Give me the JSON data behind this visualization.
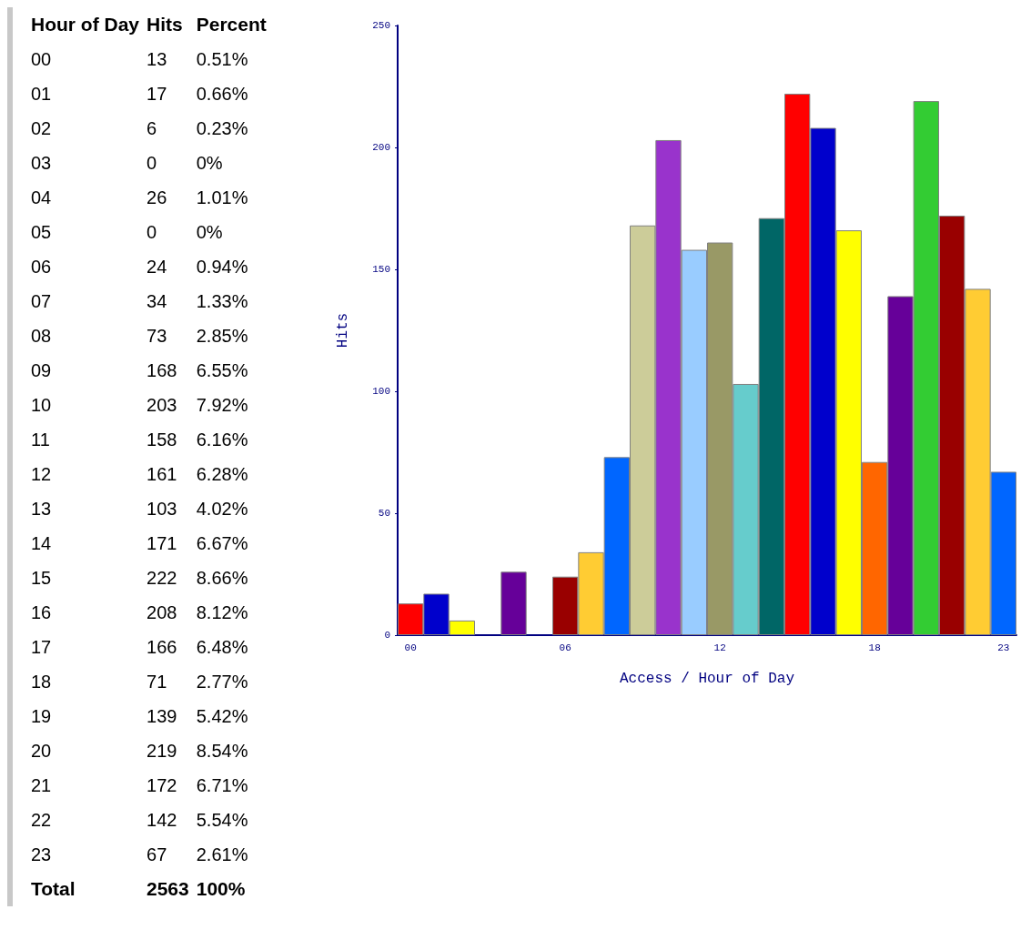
{
  "chart_data": [
    {
      "type": "other",
      "annotations": [
        "Hour of Day",
        "Hits",
        "Percent",
        "00",
        "13",
        "0.51%",
        "01",
        "17",
        "0.66%",
        "02",
        "6",
        "0.23%",
        "03",
        "0",
        "0%",
        "04",
        "26",
        "1.01%",
        "05",
        "0",
        "0%",
        "06",
        "24",
        "0.94%",
        "07",
        "34",
        "1.33%",
        "08",
        "73",
        "2.85%",
        "09",
        "168",
        "6.55%",
        "10",
        "203",
        "7.92%",
        "11",
        "158",
        "6.16%",
        "12",
        "161",
        "6.28%",
        "13",
        "103",
        "4.02%",
        "14",
        "171",
        "6.67%",
        "15",
        "222",
        "8.66%",
        "16",
        "208",
        "8.12%",
        "17",
        "166",
        "6.48%",
        "18",
        "71",
        "2.77%",
        "19",
        "139",
        "5.42%",
        "20",
        "219",
        "8.54%",
        "21",
        "172",
        "6.71%",
        "22",
        "142",
        "5.54%",
        "23",
        "67",
        "2.61%",
        "Total",
        "2563",
        "100%"
      ]
    },
    {
      "type": "bar",
      "xlabel": "Access / Hour of Day",
      "ylabel": "Hits",
      "categories": [
        "00",
        null,
        null,
        null,
        null,
        null,
        "06",
        null,
        null,
        null,
        null,
        null,
        "12",
        null,
        null,
        null,
        null,
        null,
        "18",
        null,
        null,
        null,
        null,
        "23"
      ],
      "values": [
        13,
        17,
        6,
        0,
        26,
        0,
        24,
        34,
        73,
        168,
        203,
        158,
        161,
        103,
        171,
        222,
        208,
        166,
        71,
        139,
        219,
        172,
        142,
        67
      ],
      "colors": [
        "#ff0000",
        "#0000cc",
        "#ffff00",
        "#ff6600",
        "#660099",
        "#33cc33",
        "#990000",
        "#ffcc33",
        "#0066ff",
        "#cccc99",
        "#9933cc",
        "#99ccff",
        "#999966",
        "#66cccc",
        "#006666",
        "#ff0000",
        "#0000cc",
        "#ffff00",
        "#ff6600",
        "#660099",
        "#33cc33",
        "#990000",
        "#ffcc33",
        "#0066ff"
      ],
      "ylim": [
        0,
        250
      ],
      "yticks": [
        0,
        50,
        100,
        150,
        200,
        250
      ],
      "grid": false
    }
  ]
}
